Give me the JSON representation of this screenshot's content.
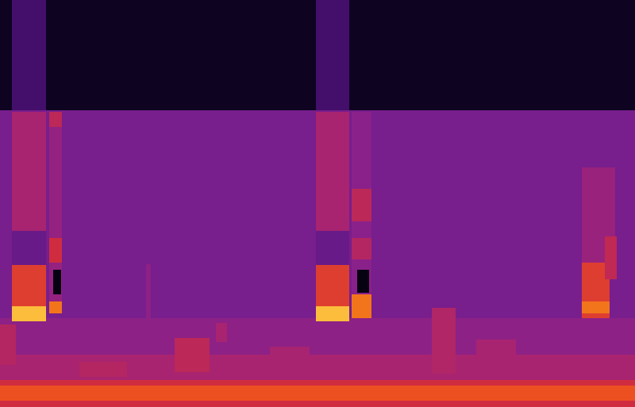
{
  "chart_data": {
    "type": "heatmap",
    "tick_labels": false,
    "xlim": [
      0,
      40
    ],
    "ylim": [
      0,
      27
    ],
    "value_range": [
      0,
      10
    ],
    "cells": [
      {
        "t0": 0,
        "t1": 40,
        "f0": 0,
        "f1": 0.4,
        "value": 7
      },
      {
        "t0": 0,
        "t1": 40,
        "f0": 0.4,
        "f1": 1.4,
        "value": 8
      },
      {
        "t0": 0,
        "t1": 40,
        "f0": 1.4,
        "f1": 1.8,
        "value": 7
      },
      {
        "t0": 0,
        "t1": 40,
        "f0": 1.8,
        "f1": 3.5,
        "value": 6
      },
      {
        "t0": 0,
        "t1": 40,
        "f0": 3.5,
        "f1": 5.9,
        "value": 5.3
      },
      {
        "t0": 0,
        "t1": 40,
        "f0": 5.9,
        "f1": 19.7,
        "value": 4.6
      },
      {
        "t0": 0,
        "t1": 40,
        "f0": 19.7,
        "f1": 27,
        "value": 0.7
      },
      {
        "t0": 0,
        "t1": 1,
        "f0": 2.8,
        "f1": 5.5,
        "value": 6.3
      },
      {
        "t0": 11,
        "t1": 13.2,
        "f0": 2.3,
        "f1": 4.6,
        "value": 6.5
      },
      {
        "t0": 13.6,
        "t1": 14.3,
        "f0": 4.3,
        "f1": 5.6,
        "value": 6
      },
      {
        "t0": 27.2,
        "t1": 28.7,
        "f0": 2.2,
        "f1": 6.6,
        "value": 6.2
      },
      {
        "t0": 30,
        "t1": 32.5,
        "f0": 2.5,
        "f1": 4.5,
        "value": 6
      },
      {
        "t0": 5,
        "t1": 8,
        "f0": 2,
        "f1": 3,
        "value": 6.3
      },
      {
        "t0": 17,
        "t1": 19.5,
        "f0": 2.5,
        "f1": 4,
        "value": 6
      },
      {
        "t0": 9.2,
        "t1": 9.5,
        "f0": 5.9,
        "f1": 9.5,
        "value": 5.3
      },
      {
        "t0": 0.75,
        "t1": 2.9,
        "f0": 19.7,
        "f1": 27,
        "value": 2.8
      },
      {
        "t0": 0.75,
        "t1": 2.9,
        "f0": 11.7,
        "f1": 19.6,
        "value": 6
      },
      {
        "t0": 0.75,
        "t1": 2.9,
        "f0": 9.4,
        "f1": 11.7,
        "value": 4
      },
      {
        "t0": 0.75,
        "t1": 2.9,
        "f0": 6.7,
        "f1": 9.4,
        "value": 7.5
      },
      {
        "t0": 0.75,
        "t1": 2.9,
        "f0": 5.7,
        "f1": 6.7,
        "value": 9.5
      },
      {
        "t0": 3.1,
        "t1": 3.9,
        "f0": 7,
        "f1": 19.6,
        "value": 5.5
      },
      {
        "t0": 3.1,
        "t1": 3.9,
        "f0": 9.6,
        "f1": 11.2,
        "value": 7
      },
      {
        "t0": 3.1,
        "t1": 3.9,
        "f0": 18.6,
        "f1": 19.6,
        "value": 6.5
      },
      {
        "t0": 3.1,
        "t1": 3.9,
        "f0": 6.2,
        "f1": 7,
        "value": 8.5
      },
      {
        "t0": 3.35,
        "t1": 3.85,
        "f0": 7.5,
        "f1": 9.1,
        "value": 0.3
      },
      {
        "t0": 19.9,
        "t1": 22,
        "f0": 19.7,
        "f1": 27,
        "value": 2.8
      },
      {
        "t0": 19.9,
        "t1": 22,
        "f0": 11.7,
        "f1": 19.6,
        "value": 6
      },
      {
        "t0": 19.9,
        "t1": 22,
        "f0": 9.4,
        "f1": 11.7,
        "value": 4
      },
      {
        "t0": 19.9,
        "t1": 22,
        "f0": 6.7,
        "f1": 9.4,
        "value": 7.5
      },
      {
        "t0": 19.9,
        "t1": 22,
        "f0": 5.7,
        "f1": 6.7,
        "value": 9.5
      },
      {
        "t0": 22.15,
        "t1": 23.4,
        "f0": 7,
        "f1": 19.6,
        "value": 5.2
      },
      {
        "t0": 22.15,
        "t1": 23.4,
        "f0": 12.3,
        "f1": 14.5,
        "value": 6.5
      },
      {
        "t0": 22.15,
        "t1": 23.4,
        "f0": 9.8,
        "f1": 11.2,
        "value": 6.3
      },
      {
        "t0": 22.15,
        "t1": 23.4,
        "f0": 5.9,
        "f1": 7.5,
        "value": 8.5
      },
      {
        "t0": 22.5,
        "t1": 23.25,
        "f0": 7.6,
        "f1": 9.1,
        "value": 0.3
      },
      {
        "t0": 36.65,
        "t1": 38.75,
        "f0": 9.6,
        "f1": 15.9,
        "value": 5.6
      },
      {
        "t0": 36.65,
        "t1": 38.4,
        "f0": 5.9,
        "f1": 9.6,
        "value": 7.5
      },
      {
        "t0": 36.65,
        "t1": 38.4,
        "f0": 6.2,
        "f1": 7,
        "value": 8.5
      },
      {
        "t0": 38.1,
        "t1": 38.85,
        "f0": 8.5,
        "f1": 11.3,
        "value": 6.6
      }
    ]
  }
}
